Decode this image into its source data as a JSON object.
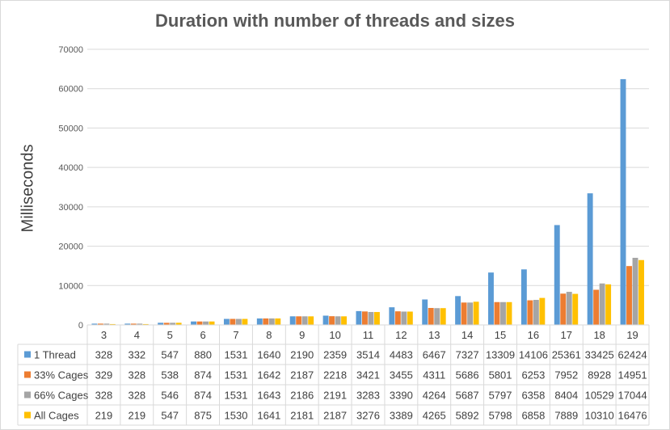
{
  "chart_data": {
    "type": "bar",
    "title": "Duration with number of threads and sizes",
    "xlabel": "",
    "ylabel": "Milliseconds",
    "ylim": [
      0,
      70000
    ],
    "yticks": [
      "0",
      "10000",
      "20000",
      "30000",
      "40000",
      "50000",
      "60000",
      "70000"
    ],
    "grid": true,
    "legend": "data table",
    "categories": [
      "3",
      "4",
      "5",
      "6",
      "7",
      "8",
      "9",
      "10",
      "11",
      "12",
      "13",
      "14",
      "15",
      "16",
      "17",
      "18",
      "19"
    ],
    "series": [
      {
        "name": "1 Thread",
        "color": "#5b9bd5",
        "values": [
          328,
          332,
          547,
          880,
          1531,
          1640,
          2190,
          2359,
          3514,
          4483,
          6467,
          7327,
          13309,
          14106,
          25361,
          33425,
          62424
        ]
      },
      {
        "name": "33% Cages",
        "color": "#ed7d31",
        "values": [
          329,
          328,
          538,
          874,
          1531,
          1642,
          2187,
          2218,
          3421,
          3455,
          4311,
          5686,
          5801,
          6253,
          7952,
          8928,
          14951
        ]
      },
      {
        "name": "66% Cages",
        "color": "#a5a5a5",
        "values": [
          328,
          328,
          546,
          874,
          1531,
          1643,
          2186,
          2191,
          3283,
          3390,
          4264,
          5687,
          5797,
          6358,
          8404,
          10529,
          17044
        ]
      },
      {
        "name": "All Cages",
        "color": "#ffc000",
        "values": [
          219,
          219,
          547,
          875,
          1530,
          1641,
          2181,
          2187,
          3276,
          3389,
          4265,
          5892,
          5798,
          6858,
          7889,
          10310,
          16476
        ]
      }
    ]
  }
}
